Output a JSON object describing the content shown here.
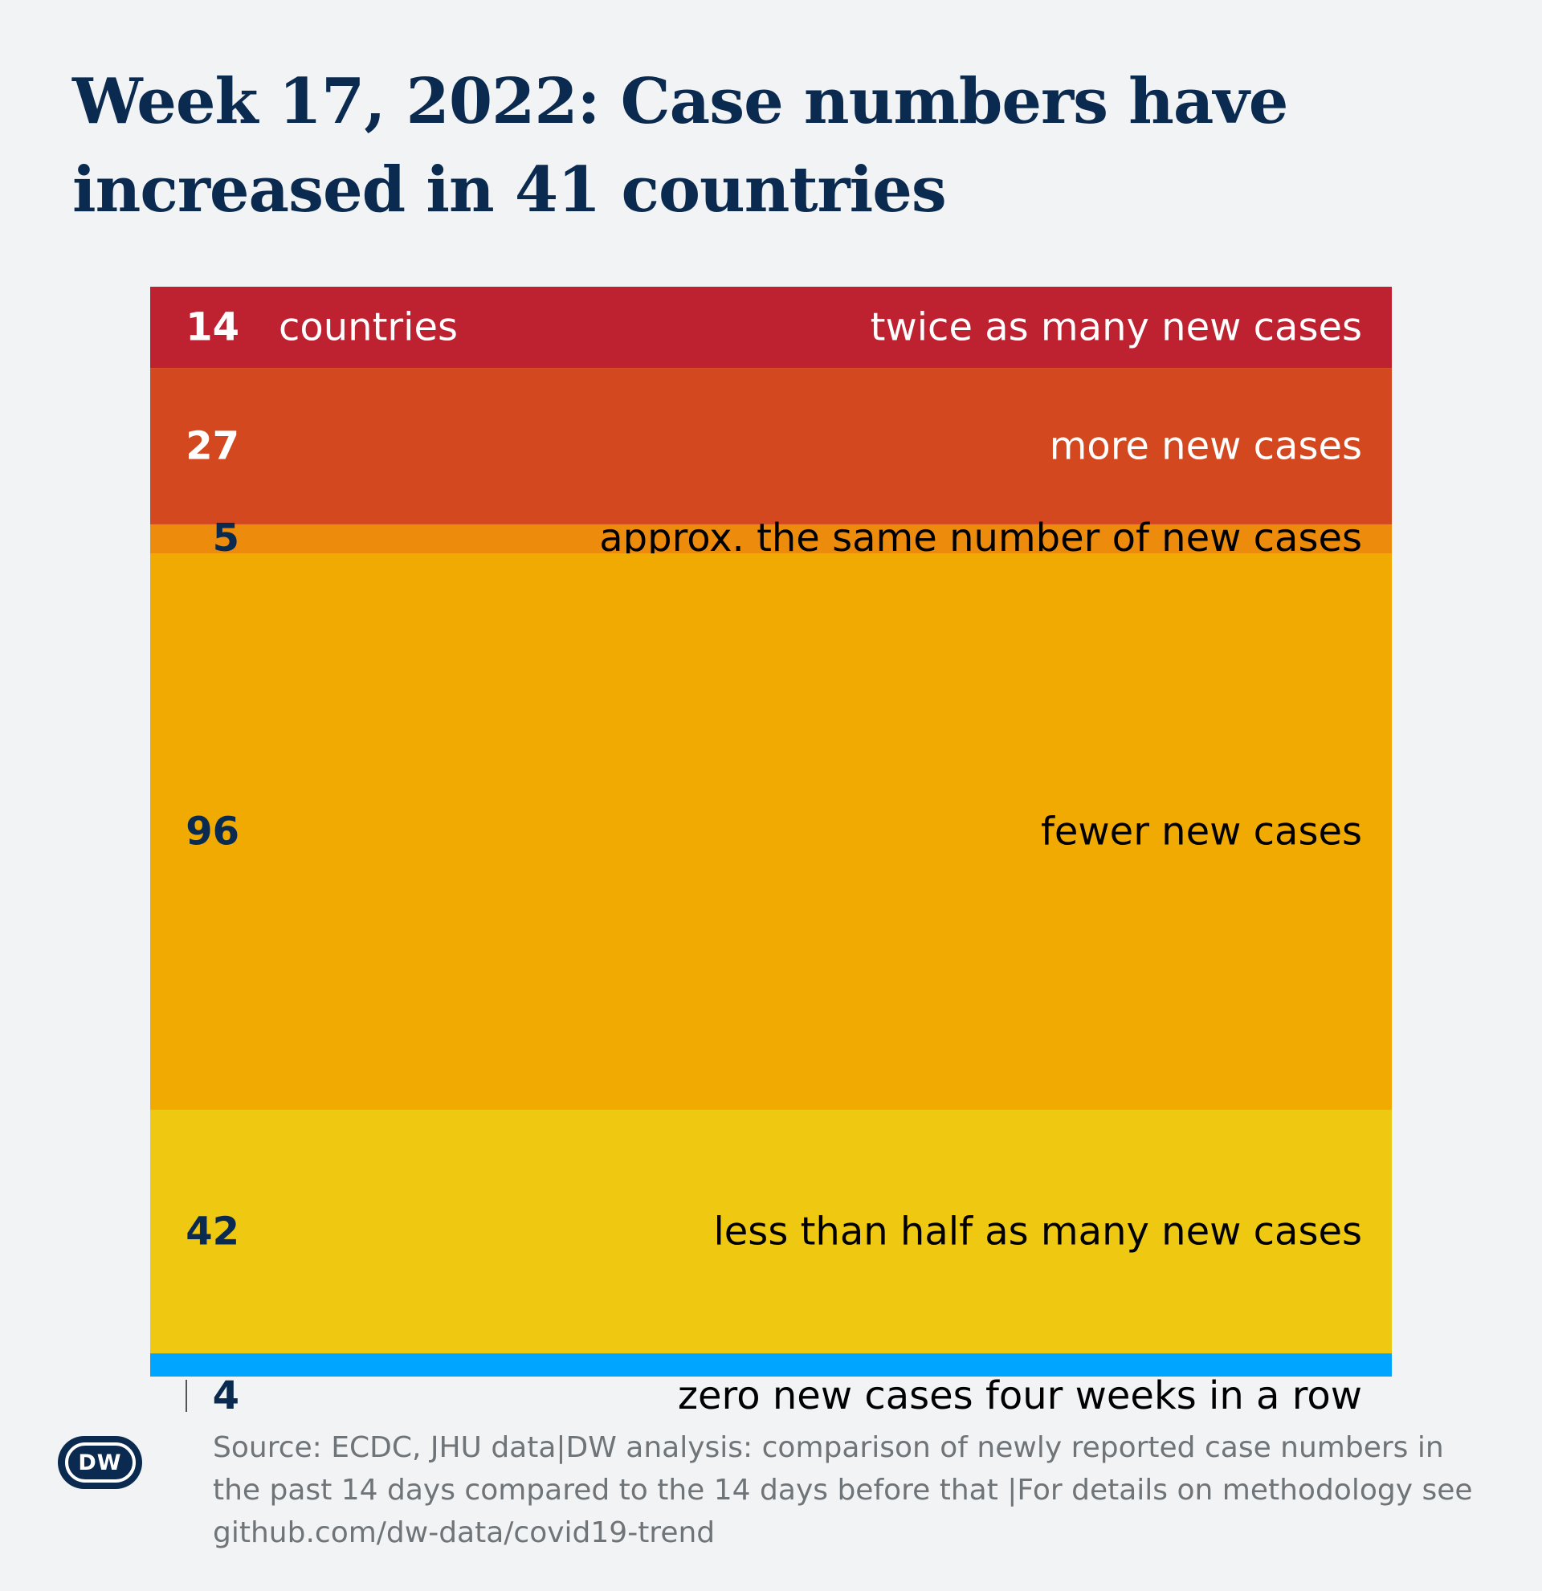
{
  "title": "Week 17, 2022: Case numbers have increased in 41 countries",
  "unit_label": "countries",
  "source": "Source: ECDC, JHU data|DW analysis: comparison of newly reported case numbers in the past 14 days compared to the 14 days before that |For details on methodology see github.com/dw-data/covid19-trend",
  "logo": "DW",
  "chart_data": {
    "type": "bar",
    "orientation": "stacked-vertical",
    "title": "Week 17, 2022: Case numbers have increased in 41 countries",
    "categories": [
      "twice as many new cases",
      "more new cases",
      "approx. the same number of new cases",
      "fewer new cases",
      "less than half as many new cases",
      "zero new cases four weeks in a row"
    ],
    "values": [
      14,
      27,
      5,
      96,
      42,
      4
    ],
    "colors": [
      "#be2130",
      "#d4481f",
      "#ec8b0c",
      "#f0aa02",
      "#eec811",
      "#00a5ff"
    ],
    "text_colors": [
      "#ffffff",
      "#ffffff",
      "#0b2a4f",
      "#0b2a4f",
      "#0b2a4f",
      "#0b2a4f"
    ],
    "label_colors": [
      "#ffffff",
      "#ffffff",
      "#000000",
      "#000000",
      "#000000",
      "#000000"
    ],
    "unit": "countries",
    "xlabel": "",
    "ylabel": ""
  }
}
